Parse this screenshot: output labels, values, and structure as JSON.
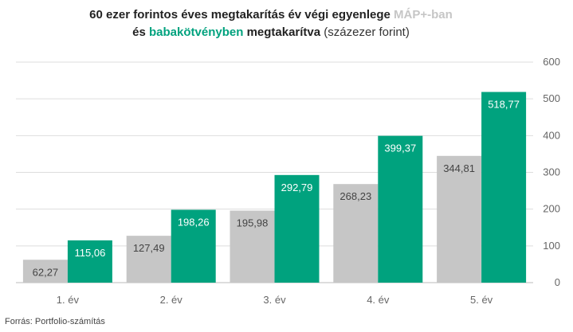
{
  "title": {
    "line1_main": "60 ezer forintos éves megtakarítás év végi egyenlege",
    "line1_series": "MÁP+-ban",
    "line2_prefix": "és",
    "line2_series": "babakötvényben",
    "line2_main": "megtakarítva",
    "line2_unit": "(százezer forint)"
  },
  "source": "Forrás: Portfolio-számítás",
  "colors": {
    "map": "#c6c6c6",
    "baba": "#00a27e",
    "grid": "#dddddd",
    "axis_text": "#666666"
  },
  "chart_data": {
    "type": "bar",
    "categories": [
      "1. év",
      "2. év",
      "3. év",
      "4. év",
      "5. év"
    ],
    "series": [
      {
        "name": "MÁP+-ban",
        "values": [
          62.27,
          127.49,
          195.98,
          268.23,
          344.81
        ],
        "labels": [
          "62,27",
          "127,49",
          "195,98",
          "268,23",
          "344,81"
        ]
      },
      {
        "name": "babakötvényben",
        "values": [
          115.06,
          198.26,
          292.79,
          399.37,
          518.77
        ],
        "labels": [
          "115,06",
          "198,26",
          "292,79",
          "399,37",
          "518,77"
        ]
      }
    ],
    "ylim": [
      0,
      600
    ],
    "yticks": [
      "0",
      "100",
      "200",
      "300",
      "400",
      "500",
      "600"
    ],
    "y_axis_side": "right",
    "grid": true
  }
}
